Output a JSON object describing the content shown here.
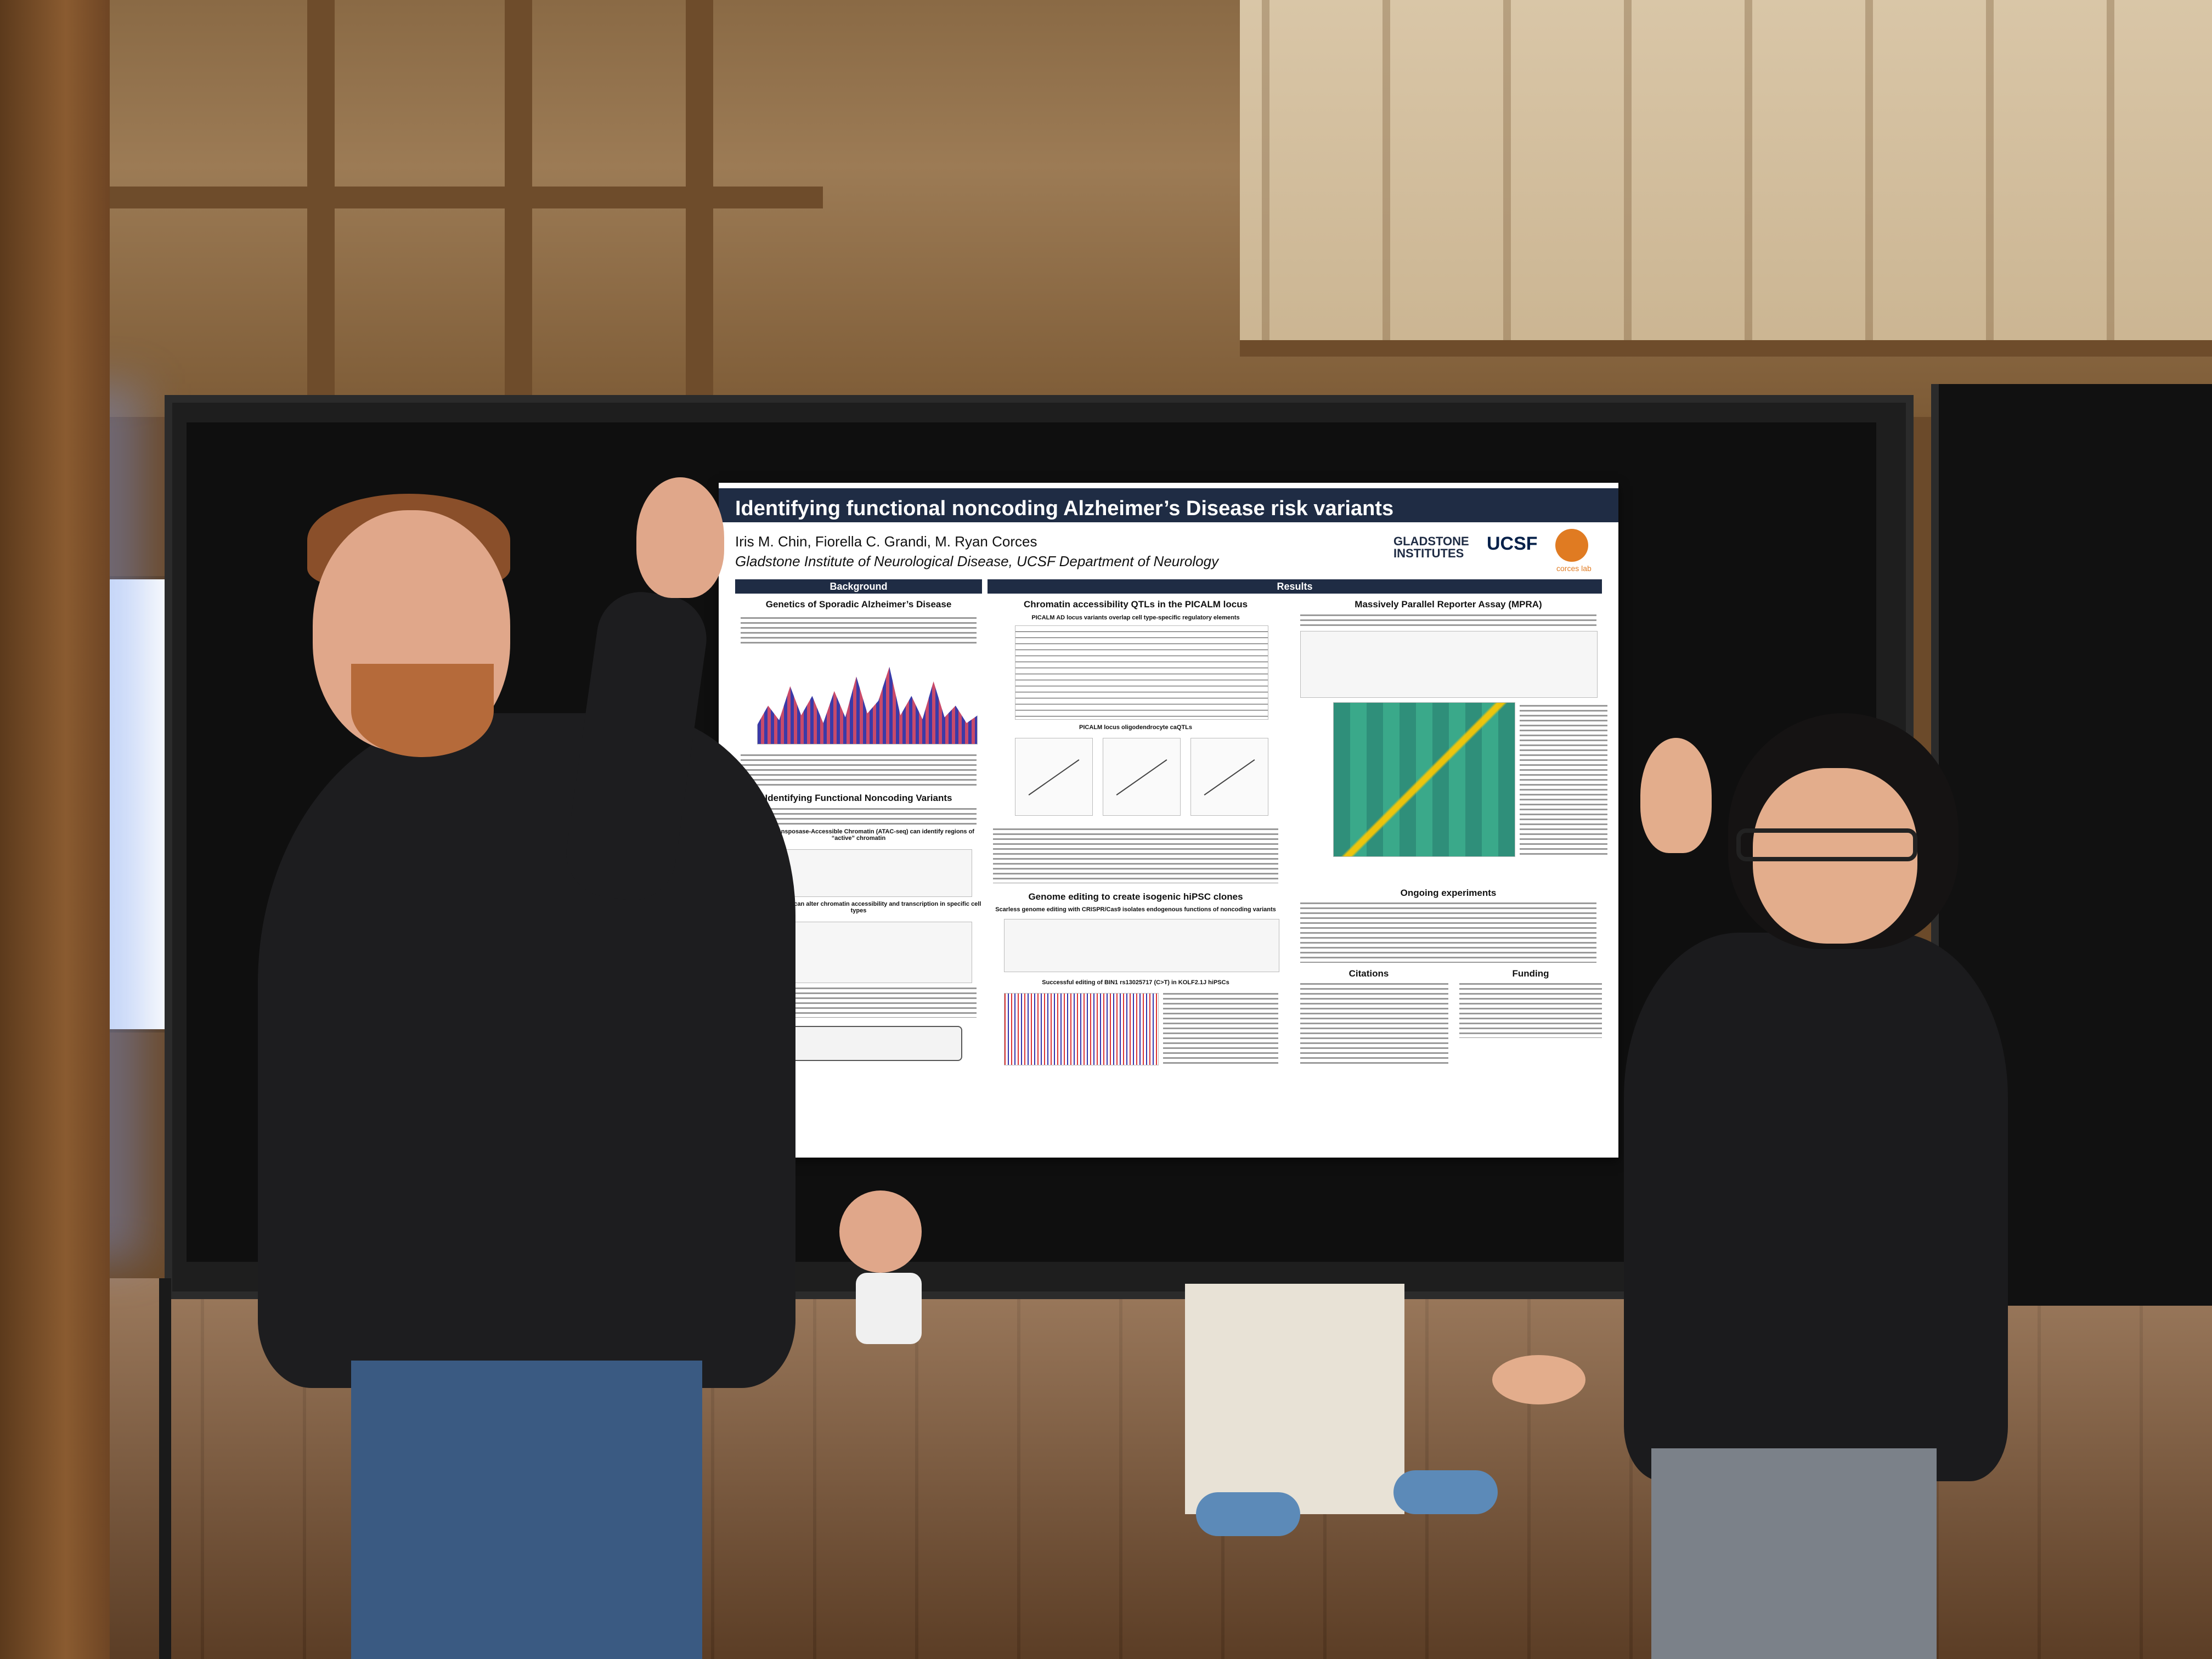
{
  "poster": {
    "title": "Identifying functional noncoding Alzheimer’s Disease risk variants",
    "authors": "Iris M. Chin, Fiorella C. Grandi, M. Ryan Corces",
    "affiliation": "Gladstone Institute of Neurological Disease, UCSF Department of Neurology",
    "logos": {
      "gladstone": "GLADSTONE INSTITUTES",
      "ucsf": "UCSF",
      "corces": "corces lab"
    },
    "sections": {
      "background": "Background",
      "results": "Results"
    },
    "headings": {
      "genetics": "Genetics of Sporadic Alzheimer’s Disease",
      "identifying": "Identifying Functional Noncoding Variants",
      "atac": "Assay for Transposase-Accessible Chromatin (ATAC-seq) can identify regions of “active” chromatin",
      "noncoding": "Noncoding variants can alter chromatin accessibility and transcription in specific cell types",
      "chromatin_qtls": "Chromatin accessibility QTLs in the PICALM locus",
      "picalm_overlap": "PICALM AD locus variants overlap cell type-specific regulatory elements",
      "picalm_caqtls": "PICALM locus oligodendrocyte caQTLs",
      "genome_editing": "Genome editing to create isogenic hiPSC clones",
      "scarless": "Scarless genome editing with CRISPR/Cas9 isolates endogenous functions of noncoding variants",
      "successful": "Successful editing of BIN1 rs13025717 (C>T) in KOLF2.1J hiPSCs",
      "mpra": "Massively Parallel Reporter Assay (MPRA)",
      "ongoing": "Ongoing experiments",
      "citations": "Citations",
      "funding": "Funding"
    }
  }
}
